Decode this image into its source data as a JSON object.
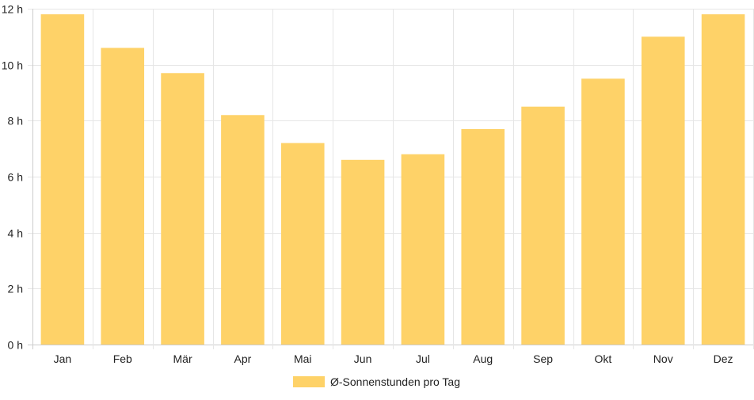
{
  "chart_data": {
    "type": "bar",
    "categories": [
      "Jan",
      "Feb",
      "Mär",
      "Apr",
      "Mai",
      "Jun",
      "Jul",
      "Aug",
      "Sep",
      "Okt",
      "Nov",
      "Dez"
    ],
    "series": [
      {
        "name": "Ø-Sonnenstunden pro Tag",
        "values": [
          11.8,
          10.6,
          9.7,
          8.2,
          7.2,
          6.6,
          6.8,
          7.7,
          8.5,
          9.5,
          11.0,
          11.8
        ],
        "color": "#fed268"
      }
    ],
    "y_ticks": [
      "0 h",
      "2 h",
      "4 h",
      "6 h",
      "8 h",
      "10 h",
      "12 h"
    ],
    "ylim": [
      0,
      12
    ],
    "y_unit": "h",
    "grid": true,
    "legend_position": "bottom",
    "colors": {
      "bar": "#fed268",
      "grid": "#e6e6e6",
      "axis": "#cccccc",
      "text": "#222222"
    }
  }
}
